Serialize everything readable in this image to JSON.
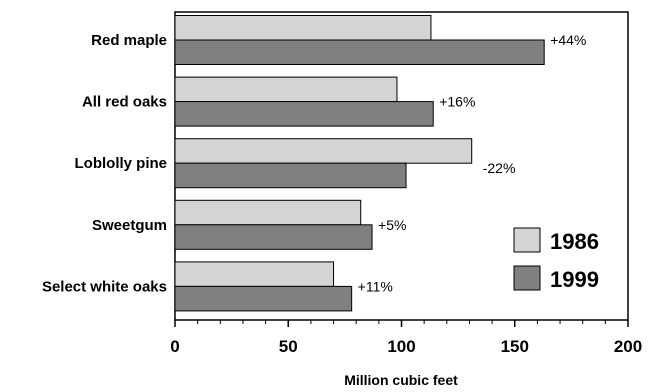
{
  "chart_data": {
    "type": "bar",
    "orientation": "horizontal",
    "categories": [
      "Red maple",
      "All red oaks",
      "Loblolly pine",
      "Sweetgum",
      "Select white oaks"
    ],
    "series": [
      {
        "name": "1986",
        "values": [
          113,
          98,
          131,
          82,
          70
        ],
        "color": "#d4d4d4"
      },
      {
        "name": "1999",
        "values": [
          163,
          114,
          102,
          87,
          78
        ],
        "color": "#808080"
      }
    ],
    "annotations": [
      "+44%",
      "+16%",
      "-22%",
      "+5%",
      "+11%"
    ],
    "xlabel": "Million cubic feet",
    "xlim": [
      0,
      200
    ],
    "xticks": [
      0,
      50,
      100,
      150,
      200
    ],
    "grid": false,
    "legend_position": "right"
  }
}
